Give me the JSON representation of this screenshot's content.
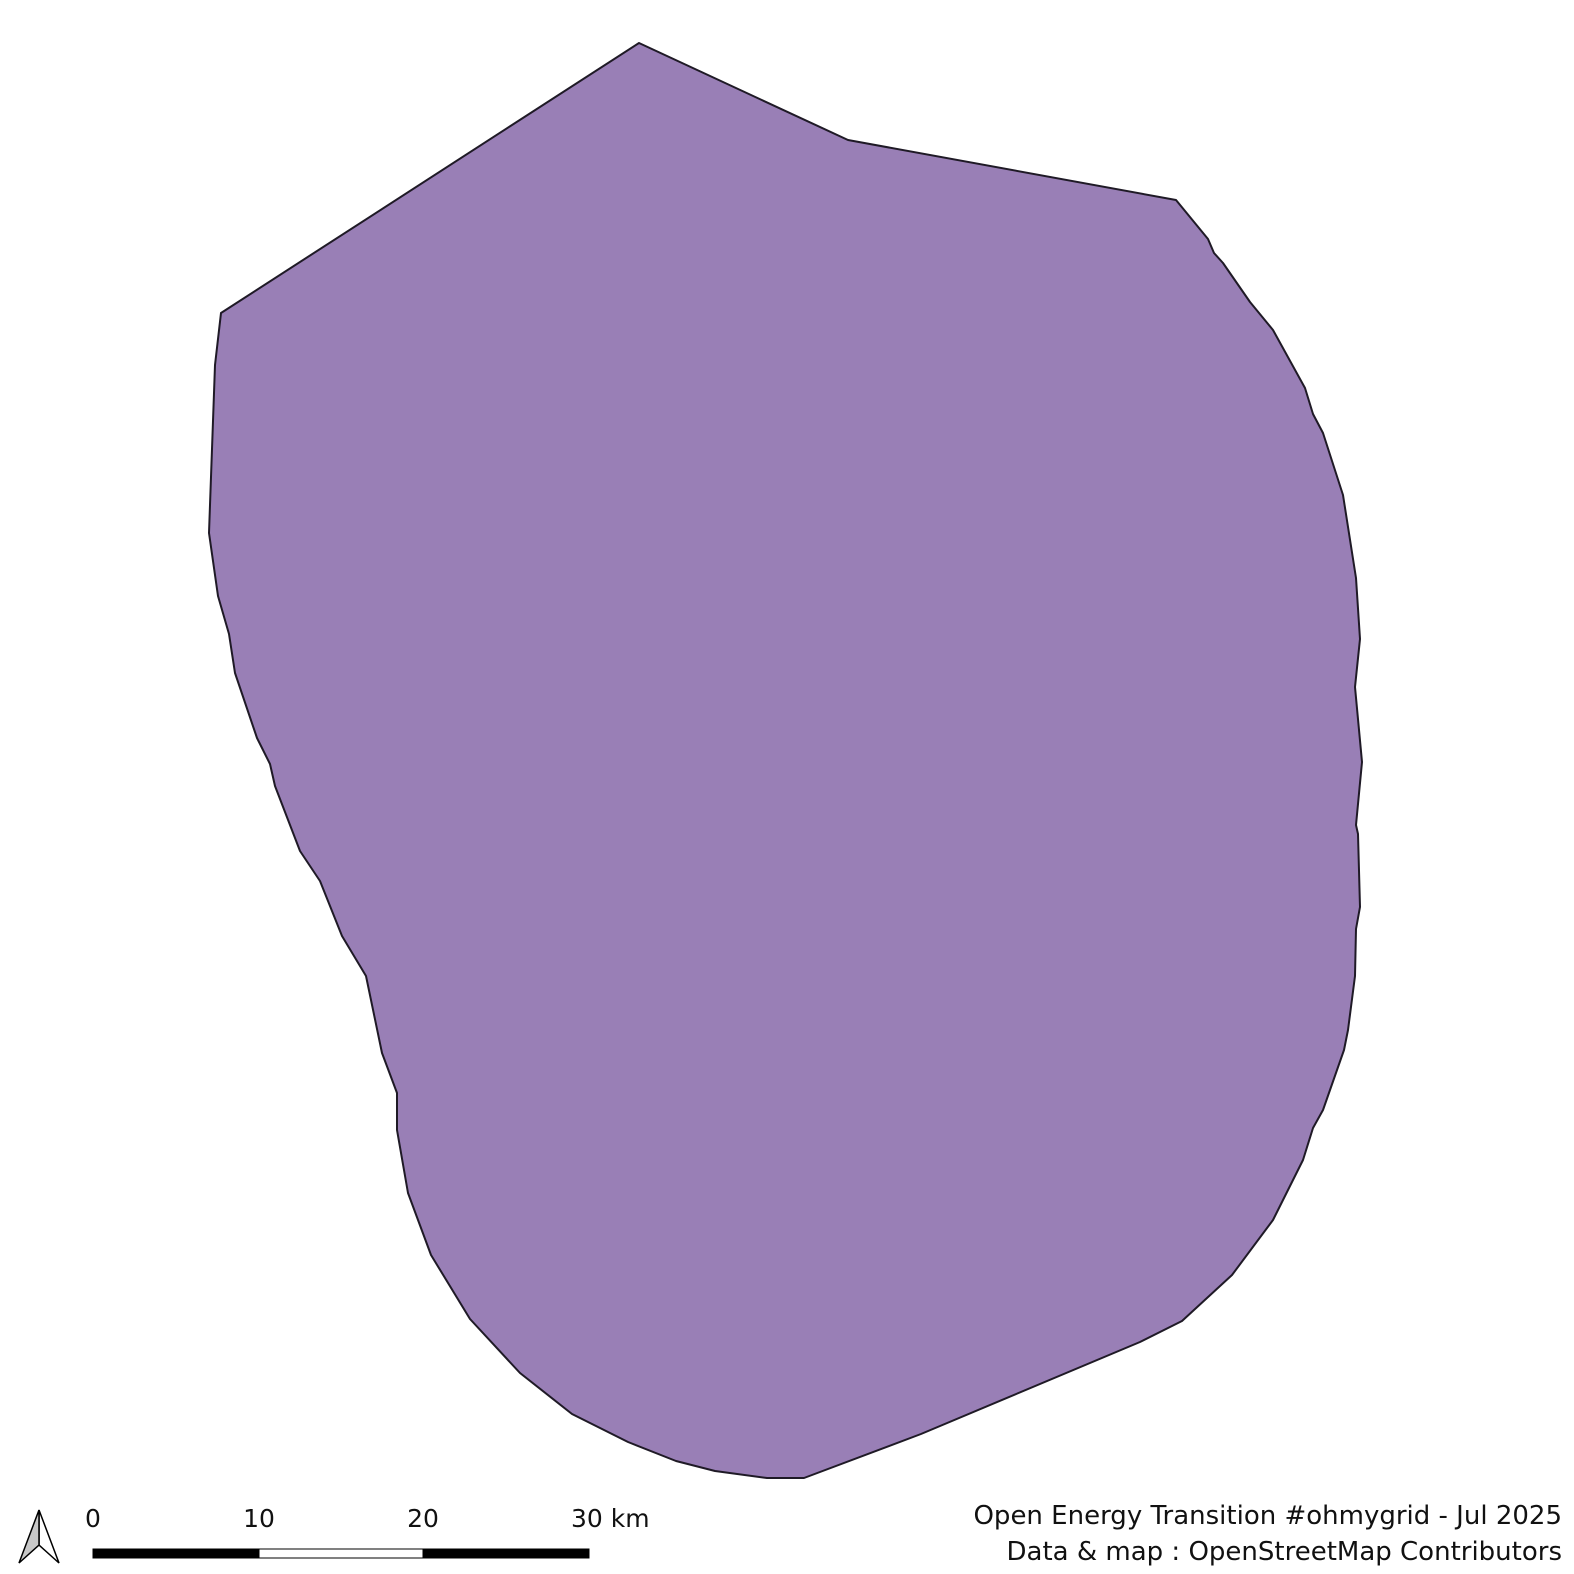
{
  "map": {
    "region_fill": "#997fb6",
    "region_stroke": "#1f1a26",
    "background": "#ffffff"
  },
  "north_arrow": {
    "icon": "north-arrow-icon"
  },
  "scale_bar": {
    "labels": [
      "0",
      "10",
      "20",
      "30 km"
    ],
    "colors": [
      "#000000",
      "#ffffff",
      "#000000"
    ]
  },
  "credits": {
    "line1": "Open Energy Transition #ohmygrid - Jul 2025",
    "line2": "Data & map : OpenStreetMap Contributors"
  }
}
